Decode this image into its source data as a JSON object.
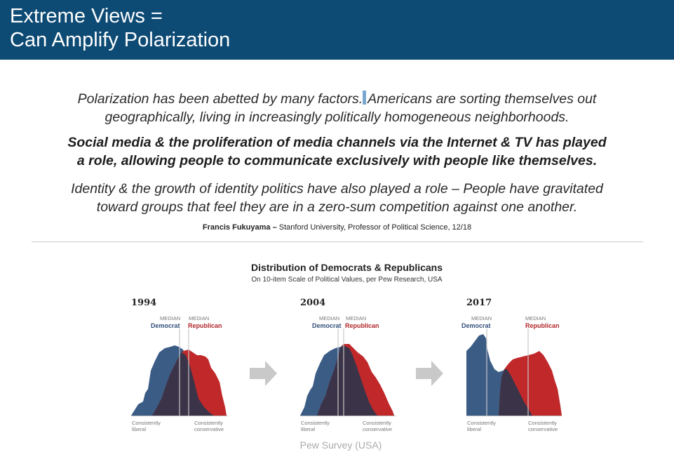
{
  "title": {
    "line1": "Extreme Views =",
    "line2": "Can Amplify Polarization"
  },
  "quote": {
    "p1_a": "Polarization has been abetted by many factors.",
    "p1_b": "Americans are sorting themselves out",
    "p1_line2": "geographically, living in increasingly politically homogeneous neighborhoods.",
    "p2_line1": "Social media & the proliferation of media channels via the Internet & TV has played",
    "p2_line2": "a role, allowing people to communicate exclusively with people like themselves.",
    "p3_line1": "Identity & the growth of identity politics have also played a role – People have gravitated",
    "p3_line2": "toward groups that feel they are in a zero-sum competition against one another."
  },
  "attribution": {
    "author": "Francis Fukuyama –",
    "detail": "Stanford University, Professor of Political Science, 12/18"
  },
  "chart": {
    "title": "Distribution of Democrats & Republicans",
    "subtitle": "On 10-item Scale of Political Values, per Pew Research, USA",
    "median_label": "MEDIAN",
    "dem_label": "Democrat",
    "rep_label": "Republican",
    "left_axis_line1": "Consistently",
    "left_axis_line2": "liberal",
    "right_axis_line1": "Consistently",
    "right_axis_line2": "conservative",
    "panels": [
      {
        "year": "1994"
      },
      {
        "year": "2004"
      },
      {
        "year": "2017"
      }
    ]
  },
  "colors": {
    "header": "#0d4a74",
    "democrat": "#3b5c85",
    "republican": "#c0282a",
    "overlap": "#3b3449",
    "arrow": "#c9c9c9"
  },
  "footer": "Pew Survey (USA)"
}
